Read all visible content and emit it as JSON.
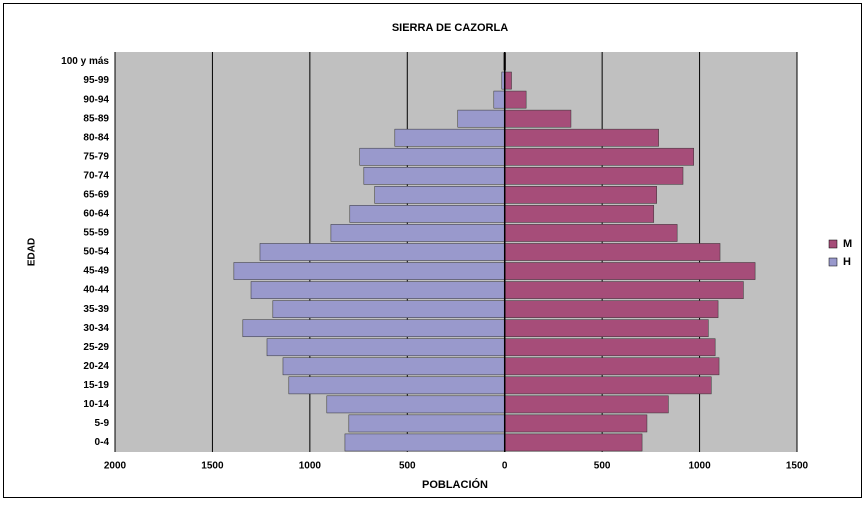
{
  "chart_data": {
    "type": "pyramid",
    "title": "SIERRA DE CAZORLA",
    "x_label": "POBLACIÓN",
    "y_label": "EDAD",
    "categories": [
      "0-4",
      "5-9",
      "10-14",
      "15-19",
      "20-24",
      "25-29",
      "30-34",
      "35-39",
      "40-44",
      "45-49",
      "50-54",
      "55-59",
      "60-64",
      "65-69",
      "70-74",
      "75-79",
      "80-84",
      "85-89",
      "90-94",
      "95-99",
      "100 y más"
    ],
    "series": [
      {
        "name": "M",
        "color": "#a64d79",
        "values": [
          705,
          730,
          840,
          1060,
          1100,
          1080,
          1045,
          1095,
          1225,
          1285,
          1105,
          885,
          765,
          780,
          915,
          970,
          790,
          340,
          110,
          35,
          5
        ]
      },
      {
        "name": "H",
        "color": "#9999cc",
        "values": [
          -820,
          -800,
          -913,
          -1108,
          -1138,
          -1220,
          -1344,
          -1190,
          -1302,
          -1390,
          -1256,
          -892,
          -795,
          -667,
          -723,
          -744,
          -564,
          -241,
          -56,
          -15,
          -5
        ]
      }
    ],
    "xlim": [
      -2000,
      1500
    ],
    "xticks": [
      {
        "value": -2000,
        "label": "2000"
      },
      {
        "value": -1500,
        "label": "1500"
      },
      {
        "value": -1000,
        "label": "1000"
      },
      {
        "value": -500,
        "label": "500"
      },
      0,
      500,
      1000,
      1500
    ],
    "grid": true,
    "legend": "right"
  }
}
